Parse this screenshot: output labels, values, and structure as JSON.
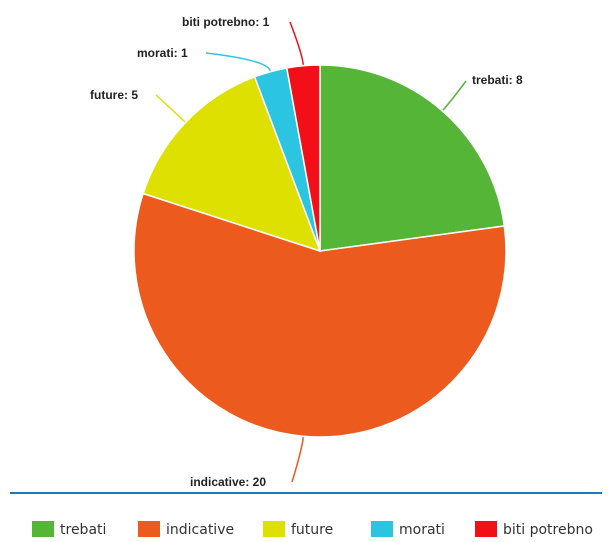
{
  "chart_data": {
    "type": "pie",
    "categories": [
      "trebati",
      "indicative",
      "future",
      "morati",
      "biti potrebno"
    ],
    "values": [
      8,
      20,
      5,
      1,
      1
    ],
    "colors": [
      "#55b537",
      "#ec5a1e",
      "#dde000",
      "#2bc5e2",
      "#f20f18"
    ],
    "data_labels": [
      "trebati: 8",
      "indicative: 20",
      "future: 5",
      "morati: 1",
      "biti potrebno: 1"
    ],
    "start_angle_deg": 0,
    "direction": "clockwise",
    "legend_position": "bottom",
    "separator_color": "#1a78c2"
  }
}
